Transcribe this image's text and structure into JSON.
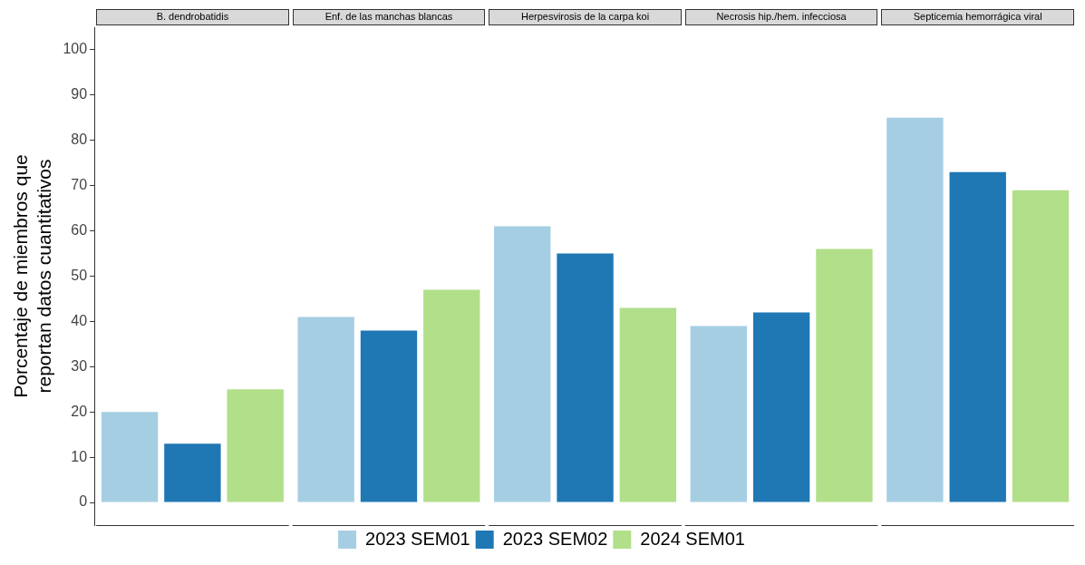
{
  "chart_data": {
    "type": "bar",
    "ylabel": "Porcentaje de miembros que reportan datos cuantitativos",
    "categories": [
      "B. dendrobatidis",
      "Enf. de las manchas blancas",
      "Herpesvirosis de la carpa koi",
      "Necrosis hip./hem. infecciosa",
      "Septicemia hemorrágica viral"
    ],
    "ylim": [
      -5,
      105
    ],
    "yticks": [
      0,
      10,
      20,
      30,
      40,
      50,
      60,
      70,
      80,
      90,
      100
    ],
    "grid": false,
    "legend": "bottom",
    "series": [
      {
        "name": "2023 SEM01",
        "color": "#a6cee3",
        "values": [
          20,
          41,
          61,
          39,
          85
        ]
      },
      {
        "name": "2023 SEM02",
        "color": "#1f78b4",
        "values": [
          13,
          38,
          55,
          42,
          73
        ]
      },
      {
        "name": "2024 SEM01",
        "color": "#b2df8a",
        "values": [
          25,
          47,
          43,
          56,
          69
        ]
      }
    ]
  }
}
